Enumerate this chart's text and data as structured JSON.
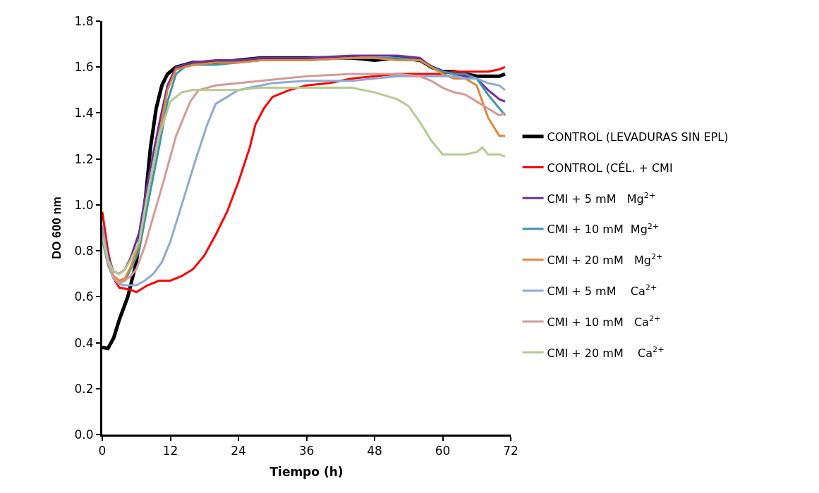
{
  "chart_data": {
    "type": "line",
    "xlabel": "Tiempo (h)",
    "ylabel": "DO 600 nm",
    "xlim": [
      0,
      72
    ],
    "xticks": [
      0,
      12,
      24,
      36,
      48,
      60,
      72
    ],
    "ylim": [
      0,
      1.8
    ],
    "yticks": [
      {
        "value": 0,
        "label": "0.0"
      },
      {
        "value": 0.2,
        "label": "0.2"
      },
      {
        "value": 0.4,
        "label": "0.4"
      },
      {
        "value": 0.6,
        "label": "0.6"
      },
      {
        "value": 0.8,
        "label": "0.8"
      },
      {
        "value": 1.0,
        "label": "1.0"
      },
      {
        "value": 1.2,
        "label": "1.2"
      },
      {
        "value": 1.4,
        "label": "1.4"
      },
      {
        "value": 1.6,
        "label": "1.6"
      },
      {
        "value": 1.8,
        "label": "1.8"
      }
    ],
    "legend": "right",
    "marker": "none",
    "line_style": "solid",
    "series": [
      {
        "name": "CONTROL (LEVADURAS SIN EPL)",
        "color": "#000000",
        "x": [
          0,
          1,
          2,
          3,
          4.5,
          6,
          7.5,
          8.5,
          9.5,
          10.5,
          11.5,
          13,
          16,
          20,
          24,
          28,
          36,
          44,
          48,
          52,
          56,
          58,
          60,
          62,
          64,
          66,
          68,
          70,
          71
        ],
        "values": [
          0.38,
          0.375,
          0.42,
          0.5,
          0.6,
          0.75,
          1.0,
          1.25,
          1.42,
          1.52,
          1.57,
          1.6,
          1.62,
          1.62,
          1.63,
          1.64,
          1.64,
          1.64,
          1.63,
          1.64,
          1.63,
          1.6,
          1.58,
          1.58,
          1.57,
          1.56,
          1.56,
          1.56,
          1.57
        ]
      },
      {
        "name": "CONTROL (CÉL. + CMI",
        "color": "#ff0000",
        "x": [
          0,
          1,
          2,
          3,
          5,
          6,
          8,
          10,
          12,
          14,
          16,
          18,
          20,
          22,
          24,
          26,
          27,
          28.5,
          30,
          33,
          36,
          40,
          44,
          48,
          52,
          56,
          60,
          62,
          64,
          66,
          68,
          70,
          71
        ],
        "values": [
          0.97,
          0.8,
          0.68,
          0.64,
          0.63,
          0.62,
          0.65,
          0.67,
          0.67,
          0.69,
          0.72,
          0.78,
          0.87,
          0.97,
          1.1,
          1.25,
          1.35,
          1.42,
          1.47,
          1.5,
          1.52,
          1.53,
          1.55,
          1.56,
          1.57,
          1.57,
          1.57,
          1.58,
          1.58,
          1.58,
          1.58,
          1.59,
          1.6
        ]
      },
      {
        "name": "CMI + 5 mM   Mg$^{2+}$",
        "color": "#7030a0",
        "x": [
          0,
          1,
          2,
          3,
          4,
          5,
          6.5,
          8,
          10,
          11.5,
          13,
          16,
          20,
          24,
          28,
          36,
          44,
          48,
          52,
          56,
          58,
          60,
          62,
          64,
          66,
          68,
          70,
          71
        ],
        "values": [
          0.9,
          0.78,
          0.71,
          0.7,
          0.72,
          0.77,
          0.88,
          1.1,
          1.35,
          1.52,
          1.6,
          1.62,
          1.63,
          1.63,
          1.64,
          1.64,
          1.65,
          1.65,
          1.65,
          1.64,
          1.6,
          1.58,
          1.57,
          1.56,
          1.55,
          1.5,
          1.46,
          1.45
        ]
      },
      {
        "name": "CMI + 10 mM  Mg$^{2+}$",
        "color": "#3b96ad",
        "x": [
          0,
          1,
          2,
          3,
          4,
          5,
          6.5,
          8,
          10,
          11.5,
          13,
          14.5,
          16,
          20,
          24,
          28,
          36,
          44,
          48,
          52,
          56,
          58,
          60,
          62,
          64,
          66,
          68,
          70,
          71
        ],
        "values": [
          0.85,
          0.74,
          0.68,
          0.66,
          0.67,
          0.72,
          0.8,
          1.0,
          1.25,
          1.45,
          1.57,
          1.6,
          1.61,
          1.61,
          1.62,
          1.63,
          1.63,
          1.64,
          1.64,
          1.64,
          1.63,
          1.6,
          1.58,
          1.57,
          1.57,
          1.55,
          1.48,
          1.42,
          1.39
        ]
      },
      {
        "name": "CMI + 20 mM   Mg$^{2+}$",
        "color": "#e0873a",
        "x": [
          0,
          1,
          2,
          3,
          4,
          5,
          6.5,
          8,
          10,
          11.5,
          13,
          16,
          20,
          24,
          28,
          36,
          44,
          48,
          52,
          56,
          58,
          60,
          62,
          64,
          66,
          68,
          70,
          71
        ],
        "values": [
          0.88,
          0.75,
          0.69,
          0.67,
          0.68,
          0.73,
          0.83,
          1.05,
          1.3,
          1.5,
          1.59,
          1.61,
          1.62,
          1.62,
          1.63,
          1.63,
          1.64,
          1.64,
          1.63,
          1.63,
          1.6,
          1.57,
          1.55,
          1.55,
          1.52,
          1.38,
          1.3,
          1.3
        ]
      },
      {
        "name": "CMI + 5 mM    Ca$^{2+}$",
        "color": "#8eaad5",
        "x": [
          0,
          1,
          2,
          3,
          4,
          5,
          6,
          7.5,
          9,
          10.5,
          12,
          14,
          16.5,
          18.5,
          20,
          22,
          24,
          26,
          28,
          30,
          36,
          44,
          48,
          52,
          56,
          60,
          62,
          64,
          66,
          68,
          70,
          71
        ],
        "values": [
          0.91,
          0.76,
          0.68,
          0.655,
          0.65,
          0.65,
          0.65,
          0.67,
          0.7,
          0.75,
          0.84,
          1.0,
          1.2,
          1.35,
          1.44,
          1.47,
          1.5,
          1.51,
          1.52,
          1.53,
          1.54,
          1.54,
          1.55,
          1.56,
          1.56,
          1.56,
          1.56,
          1.55,
          1.55,
          1.53,
          1.52,
          1.5
        ]
      },
      {
        "name": "CMI + 10 mM   Ca$^{2+}$",
        "color": "#d59a98",
        "x": [
          0,
          1,
          2,
          3,
          4,
          5,
          6,
          7.5,
          9,
          11,
          13,
          15.5,
          17,
          20,
          24,
          28,
          32,
          36,
          44,
          48,
          52,
          56,
          58,
          60,
          62,
          64,
          66,
          68,
          70,
          71
        ],
        "values": [
          0.87,
          0.75,
          0.68,
          0.66,
          0.67,
          0.69,
          0.72,
          0.82,
          0.95,
          1.12,
          1.3,
          1.45,
          1.5,
          1.52,
          1.53,
          1.54,
          1.55,
          1.56,
          1.57,
          1.57,
          1.57,
          1.56,
          1.54,
          1.51,
          1.49,
          1.48,
          1.45,
          1.42,
          1.39,
          1.4
        ]
      },
      {
        "name": "CMI + 20 mM    Ca$^{2+}$",
        "color": "#b3cb8f",
        "x": [
          0,
          1,
          2,
          3,
          4,
          5,
          6.5,
          8,
          10,
          12,
          14,
          16,
          20,
          24,
          28,
          36,
          44,
          48,
          52,
          54,
          56,
          58,
          60,
          62,
          64,
          66,
          67,
          68,
          70,
          71
        ],
        "values": [
          0.86,
          0.76,
          0.71,
          0.7,
          0.72,
          0.76,
          0.84,
          1.05,
          1.3,
          1.45,
          1.49,
          1.5,
          1.5,
          1.5,
          1.51,
          1.51,
          1.51,
          1.49,
          1.46,
          1.43,
          1.36,
          1.28,
          1.22,
          1.22,
          1.22,
          1.23,
          1.25,
          1.22,
          1.22,
          1.21
        ]
      }
    ]
  }
}
